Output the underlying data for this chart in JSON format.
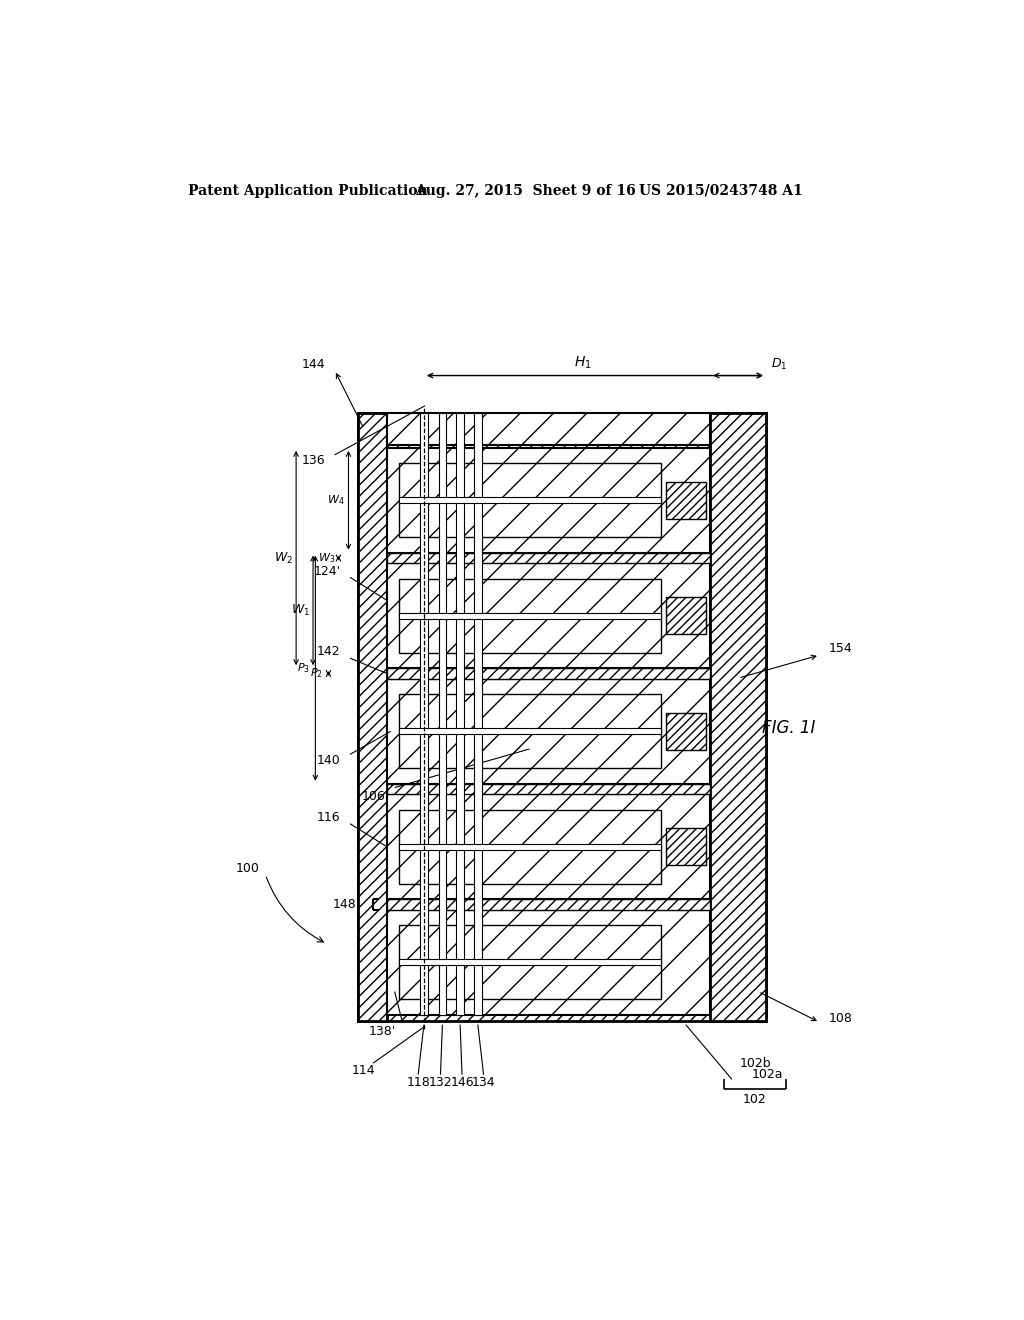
{
  "title_left": "Patent Application Publication",
  "title_center": "Aug. 27, 2015  Sheet 9 of 16",
  "title_right": "US 2015/0243748 A1",
  "fig_label": "FIG. 1I",
  "background_color": "#ffffff"
}
